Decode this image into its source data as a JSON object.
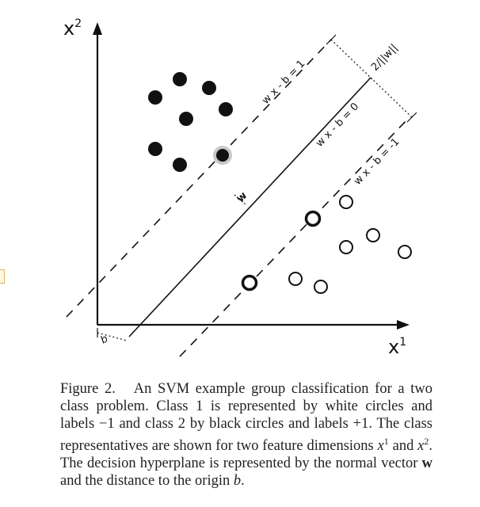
{
  "diagram": {
    "axes": {
      "y_label": "x",
      "y_sup": "2",
      "x_label": "x",
      "x_sup": "1"
    },
    "labels": {
      "margin_pos": "w x - b = 1",
      "hyperplane": "w x - b = 0",
      "margin_neg": "w x - b = -1",
      "margin_width": "2/||w||",
      "normal": "w",
      "offset": "b"
    },
    "colors": {
      "class_black": "#111111",
      "class_white": "#ffffff",
      "stroke": "#111111",
      "support_halo": "#c8c8c8"
    }
  },
  "caption": {
    "figure_label": "Figure 2.",
    "line1": "An SVM example group classification for a two class problem. Class 1 is represented by white circles and labels −1 and class 2 by black circles and labels +1. The class representatives are shown for two feature dimensions ",
    "x1": "x",
    "sup1": "1",
    "and": " and ",
    "x2": "x",
    "sup2": "2",
    "line2": ". The decision hyperplane is represented by the normal vector ",
    "bold_w": "w",
    "line3": " and the distance to the origin ",
    "italic_b": "b",
    "end": "."
  }
}
